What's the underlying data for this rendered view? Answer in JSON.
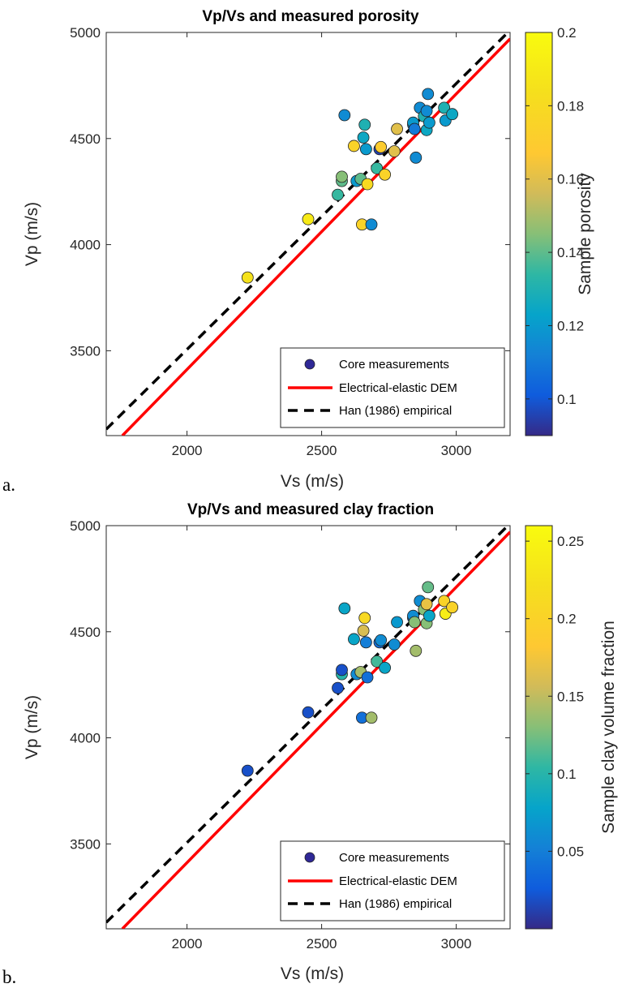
{
  "panels": [
    {
      "letter": "a."
    },
    {
      "letter": "b."
    }
  ],
  "chart_data": [
    {
      "type": "scatter",
      "title": "Vp/Vs and measured porosity",
      "xlabel": "Vs (m/s)",
      "ylabel": "Vp (m/s)",
      "xlim": [
        1700,
        3200
      ],
      "ylim": [
        3100,
        5000
      ],
      "xticks": [
        2000,
        2500,
        3000
      ],
      "yticks": [
        3500,
        4000,
        4500,
        5000
      ],
      "colorbar": {
        "label": "Sample porosity",
        "range": [
          0.09,
          0.2
        ],
        "ticks": [
          "0.1",
          "0.12",
          "0.14",
          "0.16",
          "0.18",
          "0.2"
        ],
        "tick_values": [
          0.1,
          0.12,
          0.14,
          0.16,
          0.18,
          0.2
        ]
      },
      "legend_position": "bottom-right",
      "legend": [
        "Core measurements",
        "Electrical-elastic DEM",
        "Han (1986) empirical"
      ],
      "lines": [
        {
          "name": "Electrical-elastic DEM",
          "color": "#ff0000",
          "style": "solid",
          "x": [
            1760,
            3200
          ],
          "y": [
            3100,
            4970
          ]
        },
        {
          "name": "Han (1986) empirical",
          "color": "#000000",
          "style": "dashed",
          "x": [
            1700,
            3200
          ],
          "y": [
            3130,
            5010
          ]
        }
      ],
      "series": [
        {
          "name": "Core measurements",
          "x": [
            2225,
            2450,
            2560,
            2575,
            2575,
            2585,
            2620,
            2630,
            2645,
            2650,
            2655,
            2660,
            2665,
            2670,
            2685,
            2705,
            2715,
            2720,
            2735,
            2770,
            2780,
            2840,
            2840,
            2845,
            2850,
            2865,
            2880,
            2890,
            2890,
            2895,
            2900,
            2955,
            2960,
            2985
          ],
          "y": [
            3845,
            4120,
            4235,
            4300,
            4320,
            4610,
            4465,
            4300,
            4310,
            4095,
            4505,
            4565,
            4450,
            4285,
            4095,
            4360,
            4450,
            4460,
            4330,
            4440,
            4545,
            4565,
            4575,
            4545,
            4410,
            4645,
            4605,
            4540,
            4630,
            4710,
            4575,
            4645,
            4585,
            4615
          ],
          "c": [
            0.185,
            0.19,
            0.135,
            0.14,
            0.145,
            0.115,
            0.175,
            0.12,
            0.14,
            0.175,
            0.125,
            0.13,
            0.12,
            0.18,
            0.115,
            0.135,
            0.095,
            0.17,
            0.175,
            0.16,
            0.16,
            0.115,
            0.12,
            0.11,
            0.115,
            0.115,
            0.13,
            0.125,
            0.115,
            0.115,
            0.12,
            0.13,
            0.12,
            0.125
          ]
        }
      ]
    },
    {
      "type": "scatter",
      "title": "Vp/Vs and measured clay fraction",
      "xlabel": "Vs (m/s)",
      "ylabel": "Vp (m/s)",
      "xlim": [
        1700,
        3200
      ],
      "ylim": [
        3100,
        5000
      ],
      "xticks": [
        2000,
        2500,
        3000
      ],
      "yticks": [
        3500,
        4000,
        4500,
        5000
      ],
      "colorbar": {
        "label": "Sample clay volume fraction",
        "range": [
          0.0,
          0.26
        ],
        "ticks": [
          "0.05",
          "0.1",
          "0.15",
          "0.2",
          "0.25"
        ],
        "tick_values": [
          0.05,
          0.1,
          0.15,
          0.2,
          0.25
        ]
      },
      "legend_position": "bottom-right",
      "legend": [
        "Core measurements",
        "Electrical-elastic DEM",
        "Han (1986) empirical"
      ],
      "lines": [
        {
          "name": "Electrical-elastic DEM",
          "color": "#ff0000",
          "style": "solid",
          "x": [
            1760,
            3200
          ],
          "y": [
            3100,
            4970
          ]
        },
        {
          "name": "Han (1986) empirical",
          "color": "#000000",
          "style": "dashed",
          "x": [
            1700,
            3200
          ],
          "y": [
            3130,
            5010
          ]
        }
      ],
      "series": [
        {
          "name": "Core measurements",
          "x": [
            2225,
            2450,
            2560,
            2575,
            2575,
            2585,
            2620,
            2630,
            2645,
            2650,
            2655,
            2660,
            2665,
            2670,
            2685,
            2705,
            2715,
            2720,
            2735,
            2770,
            2780,
            2840,
            2840,
            2845,
            2850,
            2865,
            2880,
            2890,
            2890,
            2895,
            2900,
            2955,
            2960,
            2985
          ],
          "y": [
            3845,
            4120,
            4235,
            4300,
            4320,
            4610,
            4465,
            4300,
            4310,
            4095,
            4505,
            4565,
            4450,
            4285,
            4095,
            4360,
            4450,
            4460,
            4330,
            4440,
            4545,
            4565,
            4575,
            4545,
            4410,
            4645,
            4605,
            4540,
            4630,
            4710,
            4575,
            4645,
            4585,
            4615
          ],
          "c": [
            0.02,
            0.02,
            0.02,
            0.1,
            0.02,
            0.08,
            0.08,
            0.06,
            0.14,
            0.04,
            0.16,
            0.21,
            0.05,
            0.04,
            0.14,
            0.11,
            0.04,
            0.06,
            0.08,
            0.06,
            0.07,
            0.04,
            0.06,
            0.13,
            0.14,
            0.06,
            0.13,
            0.13,
            0.17,
            0.12,
            0.08,
            0.2,
            0.24,
            0.2
          ]
        }
      ]
    }
  ]
}
